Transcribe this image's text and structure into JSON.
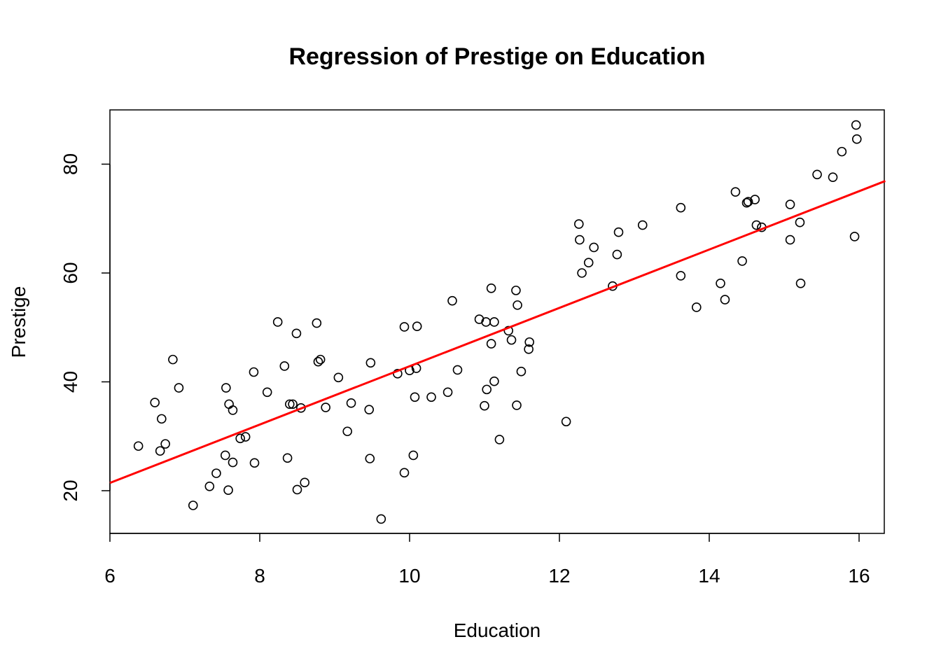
{
  "chart_data": {
    "type": "scatter",
    "title": "Regression of Prestige on Education",
    "xlabel": "Education",
    "ylabel": "Prestige",
    "xlim": [
      6,
      16.35
    ],
    "ylim": [
      12,
      90
    ],
    "xticks": [
      6,
      8,
      10,
      12,
      14,
      16
    ],
    "yticks": [
      20,
      40,
      60,
      80
    ],
    "grid": false,
    "point_color": "#000000",
    "line_color": "#ff0000",
    "regression_line": {
      "intercept": -10.73,
      "slope": 5.36
    },
    "points": [
      {
        "x": 6.38,
        "y": 28.2
      },
      {
        "x": 6.6,
        "y": 36.2
      },
      {
        "x": 6.67,
        "y": 27.3
      },
      {
        "x": 6.69,
        "y": 33.2
      },
      {
        "x": 6.74,
        "y": 28.6
      },
      {
        "x": 6.84,
        "y": 44.1
      },
      {
        "x": 6.92,
        "y": 38.9
      },
      {
        "x": 7.11,
        "y": 17.3
      },
      {
        "x": 7.33,
        "y": 20.8
      },
      {
        "x": 7.42,
        "y": 23.2
      },
      {
        "x": 7.54,
        "y": 26.5
      },
      {
        "x": 7.55,
        "y": 38.9
      },
      {
        "x": 7.58,
        "y": 20.1
      },
      {
        "x": 7.59,
        "y": 35.9
      },
      {
        "x": 7.64,
        "y": 25.2
      },
      {
        "x": 7.64,
        "y": 34.8
      },
      {
        "x": 7.74,
        "y": 29.6
      },
      {
        "x": 7.81,
        "y": 29.9
      },
      {
        "x": 7.92,
        "y": 41.8
      },
      {
        "x": 7.93,
        "y": 25.1
      },
      {
        "x": 8.1,
        "y": 38.1
      },
      {
        "x": 8.24,
        "y": 51.0
      },
      {
        "x": 8.33,
        "y": 42.9
      },
      {
        "x": 8.37,
        "y": 26.0
      },
      {
        "x": 8.4,
        "y": 35.9
      },
      {
        "x": 8.44,
        "y": 35.9
      },
      {
        "x": 8.49,
        "y": 48.9
      },
      {
        "x": 8.5,
        "y": 20.2
      },
      {
        "x": 8.55,
        "y": 35.2
      },
      {
        "x": 8.6,
        "y": 21.5
      },
      {
        "x": 8.76,
        "y": 50.8
      },
      {
        "x": 8.78,
        "y": 43.7
      },
      {
        "x": 8.81,
        "y": 44.1
      },
      {
        "x": 8.88,
        "y": 35.3
      },
      {
        "x": 9.05,
        "y": 40.8
      },
      {
        "x": 9.17,
        "y": 30.9
      },
      {
        "x": 9.22,
        "y": 36.1
      },
      {
        "x": 9.46,
        "y": 34.9
      },
      {
        "x": 9.47,
        "y": 25.9
      },
      {
        "x": 9.48,
        "y": 43.5
      },
      {
        "x": 9.62,
        "y": 14.8
      },
      {
        "x": 9.84,
        "y": 41.5
      },
      {
        "x": 9.93,
        "y": 23.3
      },
      {
        "x": 9.93,
        "y": 50.1
      },
      {
        "x": 10.0,
        "y": 42.1
      },
      {
        "x": 10.05,
        "y": 26.5
      },
      {
        "x": 10.07,
        "y": 37.2
      },
      {
        "x": 10.09,
        "y": 42.5
      },
      {
        "x": 10.1,
        "y": 50.2
      },
      {
        "x": 10.29,
        "y": 37.2
      },
      {
        "x": 10.51,
        "y": 38.1
      },
      {
        "x": 10.57,
        "y": 54.9
      },
      {
        "x": 10.64,
        "y": 42.2
      },
      {
        "x": 10.93,
        "y": 51.5
      },
      {
        "x": 11.0,
        "y": 35.6
      },
      {
        "x": 11.02,
        "y": 51.0
      },
      {
        "x": 11.03,
        "y": 38.6
      },
      {
        "x": 11.09,
        "y": 57.2
      },
      {
        "x": 11.09,
        "y": 47.0
      },
      {
        "x": 11.13,
        "y": 51.0
      },
      {
        "x": 11.13,
        "y": 40.1
      },
      {
        "x": 11.2,
        "y": 29.4
      },
      {
        "x": 11.32,
        "y": 49.4
      },
      {
        "x": 11.36,
        "y": 47.7
      },
      {
        "x": 11.42,
        "y": 56.8
      },
      {
        "x": 11.43,
        "y": 35.7
      },
      {
        "x": 11.44,
        "y": 54.1
      },
      {
        "x": 11.49,
        "y": 41.9
      },
      {
        "x": 11.59,
        "y": 46.0
      },
      {
        "x": 11.6,
        "y": 47.3
      },
      {
        "x": 12.09,
        "y": 32.7
      },
      {
        "x": 12.26,
        "y": 69.0
      },
      {
        "x": 12.27,
        "y": 66.1
      },
      {
        "x": 12.3,
        "y": 60.0
      },
      {
        "x": 12.39,
        "y": 61.9
      },
      {
        "x": 12.46,
        "y": 64.7
      },
      {
        "x": 12.71,
        "y": 57.6
      },
      {
        "x": 12.77,
        "y": 63.4
      },
      {
        "x": 12.79,
        "y": 67.5
      },
      {
        "x": 13.11,
        "y": 68.8
      },
      {
        "x": 13.62,
        "y": 59.5
      },
      {
        "x": 13.62,
        "y": 72.0
      },
      {
        "x": 13.83,
        "y": 53.7
      },
      {
        "x": 14.15,
        "y": 58.1
      },
      {
        "x": 14.21,
        "y": 55.1
      },
      {
        "x": 14.35,
        "y": 74.9
      },
      {
        "x": 14.44,
        "y": 62.2
      },
      {
        "x": 14.5,
        "y": 72.9
      },
      {
        "x": 14.52,
        "y": 73.1
      },
      {
        "x": 14.61,
        "y": 73.5
      },
      {
        "x": 14.63,
        "y": 68.8
      },
      {
        "x": 14.7,
        "y": 68.4
      },
      {
        "x": 15.08,
        "y": 66.1
      },
      {
        "x": 15.08,
        "y": 72.6
      },
      {
        "x": 15.21,
        "y": 69.3
      },
      {
        "x": 15.22,
        "y": 58.1
      },
      {
        "x": 15.44,
        "y": 78.1
      },
      {
        "x": 15.65,
        "y": 77.6
      },
      {
        "x": 15.77,
        "y": 82.3
      },
      {
        "x": 15.94,
        "y": 66.7
      },
      {
        "x": 15.96,
        "y": 87.2
      },
      {
        "x": 15.97,
        "y": 84.6
      }
    ]
  }
}
